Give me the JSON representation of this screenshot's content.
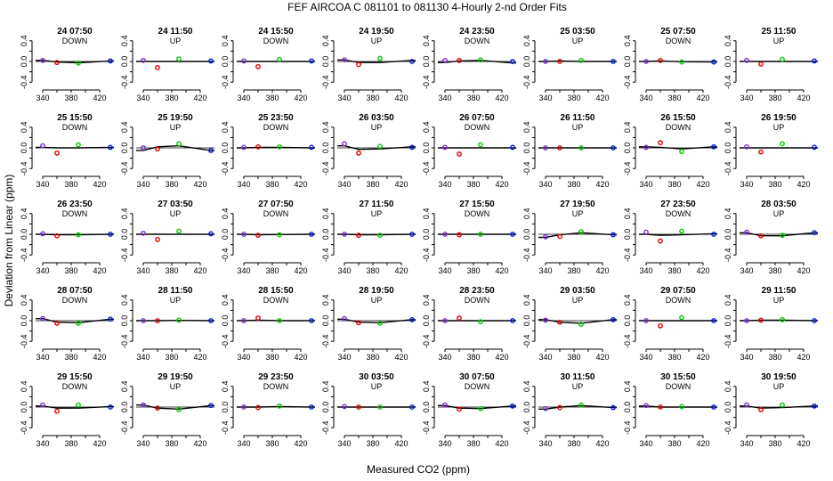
{
  "figure": {
    "title": "FEF   AIRCOA C   081101 to 081130   4-Hourly 2-nd Order Fits",
    "ylabel": "Deviation from Linear (ppm)",
    "xlabel": "Measured CO2 (ppm)"
  },
  "chart_data": {
    "type": "scatter",
    "grid": false,
    "xlim": [
      330,
      440
    ],
    "ylim": [
      -0.5,
      0.5
    ],
    "x_ticks": [
      340,
      380,
      420
    ],
    "x_ticks_minor": [
      360,
      400
    ],
    "y_ticks": [
      -0.4,
      0.0,
      0.4
    ],
    "y_ticks_minor": [
      -0.2,
      0.2
    ],
    "std_x": [
      340,
      360,
      390,
      435
    ],
    "std_colors": [
      "#7b2fd0",
      "#e00000",
      "#00cc00",
      "#0018e0"
    ],
    "panels": [
      {
        "title": "24 07:50",
        "dir": "DOWN",
        "y": [
          0.02,
          -0.02,
          -0.03,
          0.01
        ],
        "curve": [
          0.02,
          -0.01,
          -0.025,
          0.01
        ]
      },
      {
        "title": "24 11:50",
        "dir": "UP",
        "y": [
          0.02,
          -0.12,
          0.05,
          0.01
        ],
        "curve": [
          0,
          0,
          0,
          0
        ]
      },
      {
        "title": "24 15:50",
        "dir": "DOWN",
        "y": [
          0.01,
          -0.1,
          0.04,
          0.01
        ],
        "curve": [
          0,
          0,
          0,
          0
        ]
      },
      {
        "title": "24 19:50",
        "dir": "UP",
        "y": [
          0.03,
          -0.06,
          0.06,
          0.0
        ],
        "curve": [
          0.03,
          -0.02,
          -0.02,
          0.02
        ]
      },
      {
        "title": "24 23:50",
        "dir": "DOWN",
        "y": [
          0.02,
          0.02,
          0.03,
          0.0
        ],
        "curve": [
          -0.02,
          0.01,
          0.02,
          -0.03
        ]
      },
      {
        "title": "25 03:50",
        "dir": "UP",
        "y": [
          0.0,
          0.0,
          0.02,
          0.0
        ],
        "curve": [
          0.0,
          0.01,
          0.0,
          0.0
        ]
      },
      {
        "title": "25 07:50",
        "dir": "DOWN",
        "y": [
          0.0,
          0.02,
          -0.01,
          -0.01
        ],
        "curve": [
          0.0,
          0.01,
          -0.005,
          -0.01
        ]
      },
      {
        "title": "25 11:50",
        "dir": "UP",
        "y": [
          0.02,
          -0.05,
          0.04,
          0.01
        ],
        "curve": [
          0,
          0,
          0,
          0
        ]
      },
      {
        "title": "25 15:50",
        "dir": "DOWN",
        "y": [
          0.04,
          -0.1,
          0.06,
          0.01
        ],
        "curve": [
          0.01,
          0.0,
          0.0,
          0.01
        ]
      },
      {
        "title": "25 19:50",
        "dir": "UP",
        "y": [
          0.0,
          -0.02,
          0.08,
          -0.05
        ],
        "curve": [
          -0.05,
          0.02,
          0.04,
          -0.05
        ]
      },
      {
        "title": "25 23:50",
        "dir": "DOWN",
        "y": [
          0.01,
          0.02,
          0.02,
          0.01
        ],
        "curve": [
          0.0,
          0.01,
          0.01,
          0.0
        ]
      },
      {
        "title": "26 03:50",
        "dir": "UP",
        "y": [
          0.08,
          -0.1,
          0.03,
          0.01
        ],
        "curve": [
          0.04,
          -0.03,
          -0.02,
          0.02
        ]
      },
      {
        "title": "26 07:50",
        "dir": "DOWN",
        "y": [
          0.01,
          -0.12,
          0.06,
          0.01
        ],
        "curve": [
          0,
          0,
          0,
          0
        ]
      },
      {
        "title": "26 11:50",
        "dir": "UP",
        "y": [
          0.0,
          0.0,
          0.0,
          0.0
        ],
        "curve": [
          0,
          0,
          0,
          0
        ]
      },
      {
        "title": "26 15:50",
        "dir": "DOWN",
        "y": [
          0.01,
          0.1,
          -0.07,
          0.02
        ],
        "curve": [
          0.02,
          0.01,
          -0.02,
          0.02
        ]
      },
      {
        "title": "26 19:50",
        "dir": "UP",
        "y": [
          0.02,
          -0.08,
          0.08,
          0.01
        ],
        "curve": [
          0,
          0,
          0,
          0
        ]
      },
      {
        "title": "26 23:50",
        "dir": "DOWN",
        "y": [
          0.01,
          -0.03,
          -0.01,
          0.0
        ],
        "curve": [
          0.0,
          -0.01,
          -0.01,
          0.0
        ]
      },
      {
        "title": "27 03:50",
        "dir": "UP",
        "y": [
          0.02,
          -0.1,
          0.06,
          0.01
        ],
        "curve": [
          0,
          0,
          0,
          0
        ]
      },
      {
        "title": "27 07:50",
        "dir": "DOWN",
        "y": [
          0.0,
          -0.02,
          -0.01,
          0.0
        ],
        "curve": [
          0.0,
          -0.01,
          -0.005,
          0.0
        ]
      },
      {
        "title": "27 11:50",
        "dir": "UP",
        "y": [
          0.0,
          -0.02,
          -0.02,
          0.0
        ],
        "curve": [
          0.0,
          -0.01,
          -0.01,
          0.0
        ]
      },
      {
        "title": "27 15:50",
        "dir": "DOWN",
        "y": [
          0.0,
          -0.01,
          0.0,
          0.0
        ],
        "curve": [
          0,
          0,
          0,
          0
        ]
      },
      {
        "title": "27 19:50",
        "dir": "UP",
        "y": [
          -0.05,
          -0.04,
          0.05,
          -0.01
        ],
        "curve": [
          -0.06,
          -0.01,
          0.03,
          -0.01
        ]
      },
      {
        "title": "27 23:50",
        "dir": "DOWN",
        "y": [
          0.04,
          -0.13,
          0.06,
          0.0
        ],
        "curve": [
          0.0,
          -0.02,
          -0.01,
          0.01
        ]
      },
      {
        "title": "28 03:50",
        "dir": "UP",
        "y": [
          0.04,
          -0.03,
          -0.02,
          0.03
        ],
        "curve": [
          0.03,
          -0.03,
          -0.03,
          0.03
        ]
      },
      {
        "title": "28 07:50",
        "dir": "DOWN",
        "y": [
          0.04,
          -0.05,
          -0.05,
          0.03
        ],
        "curve": [
          0.04,
          -0.03,
          -0.04,
          0.03
        ]
      },
      {
        "title": "28 11:50",
        "dir": "UP",
        "y": [
          0.0,
          0.0,
          0.01,
          0.0
        ],
        "curve": [
          0.0,
          0.0,
          0.005,
          0.0
        ]
      },
      {
        "title": "28 15:50",
        "dir": "DOWN",
        "y": [
          0.0,
          0.05,
          0.0,
          0.0
        ],
        "curve": [
          0.0,
          0.01,
          0.0,
          0.0
        ]
      },
      {
        "title": "28 19:50",
        "dir": "UP",
        "y": [
          0.04,
          -0.04,
          -0.05,
          0.02
        ],
        "curve": [
          0.03,
          -0.03,
          -0.04,
          0.02
        ]
      },
      {
        "title": "28 23:50",
        "dir": "DOWN",
        "y": [
          0.0,
          0.05,
          -0.02,
          0.0
        ],
        "curve": [
          0,
          0,
          0,
          0
        ]
      },
      {
        "title": "29 03:50",
        "dir": "UP",
        "y": [
          0.01,
          -0.03,
          -0.07,
          0.02
        ],
        "curve": [
          0.02,
          -0.03,
          -0.05,
          0.02
        ]
      },
      {
        "title": "29 07:50",
        "dir": "DOWN",
        "y": [
          0.0,
          -0.1,
          0.06,
          0.0
        ],
        "curve": [
          0,
          0,
          0,
          0
        ]
      },
      {
        "title": "29 11:50",
        "dir": "UP",
        "y": [
          0.0,
          0.01,
          0.02,
          0.0
        ],
        "curve": [
          0.0,
          0.01,
          0.01,
          0.0
        ]
      },
      {
        "title": "29 15:50",
        "dir": "DOWN",
        "y": [
          0.04,
          -0.08,
          0.04,
          0.0
        ],
        "curve": [
          0.02,
          -0.02,
          -0.02,
          0.01
        ]
      },
      {
        "title": "29 19:50",
        "dir": "UP",
        "y": [
          0.04,
          -0.02,
          -0.05,
          0.03
        ],
        "curve": [
          0.04,
          -0.02,
          -0.04,
          0.03
        ]
      },
      {
        "title": "29 23:50",
        "dir": "DOWN",
        "y": [
          0.0,
          -0.01,
          0.02,
          0.0
        ],
        "curve": [
          0.0,
          0.0,
          0.01,
          0.0
        ]
      },
      {
        "title": "30 03:50",
        "dir": "UP",
        "y": [
          0.01,
          0.0,
          0.0,
          0.0
        ],
        "curve": [
          0,
          0,
          0,
          0
        ]
      },
      {
        "title": "30 07:50",
        "dir": "DOWN",
        "y": [
          0.04,
          -0.04,
          -0.03,
          0.02
        ],
        "curve": [
          0.03,
          -0.02,
          -0.03,
          0.02
        ]
      },
      {
        "title": "30 11:50",
        "dir": "UP",
        "y": [
          -0.03,
          -0.01,
          0.04,
          -0.01
        ],
        "curve": [
          -0.04,
          0.0,
          0.03,
          -0.01
        ]
      },
      {
        "title": "30 15:50",
        "dir": "DOWN",
        "y": [
          0.03,
          0.0,
          0.01,
          0.0
        ],
        "curve": [
          0.02,
          0.0,
          0.0,
          0.0
        ]
      },
      {
        "title": "30 19:50",
        "dir": "UP",
        "y": [
          0.04,
          -0.05,
          0.04,
          0.02
        ],
        "curve": [
          0.02,
          -0.02,
          -0.01,
          0.02
        ]
      }
    ]
  }
}
